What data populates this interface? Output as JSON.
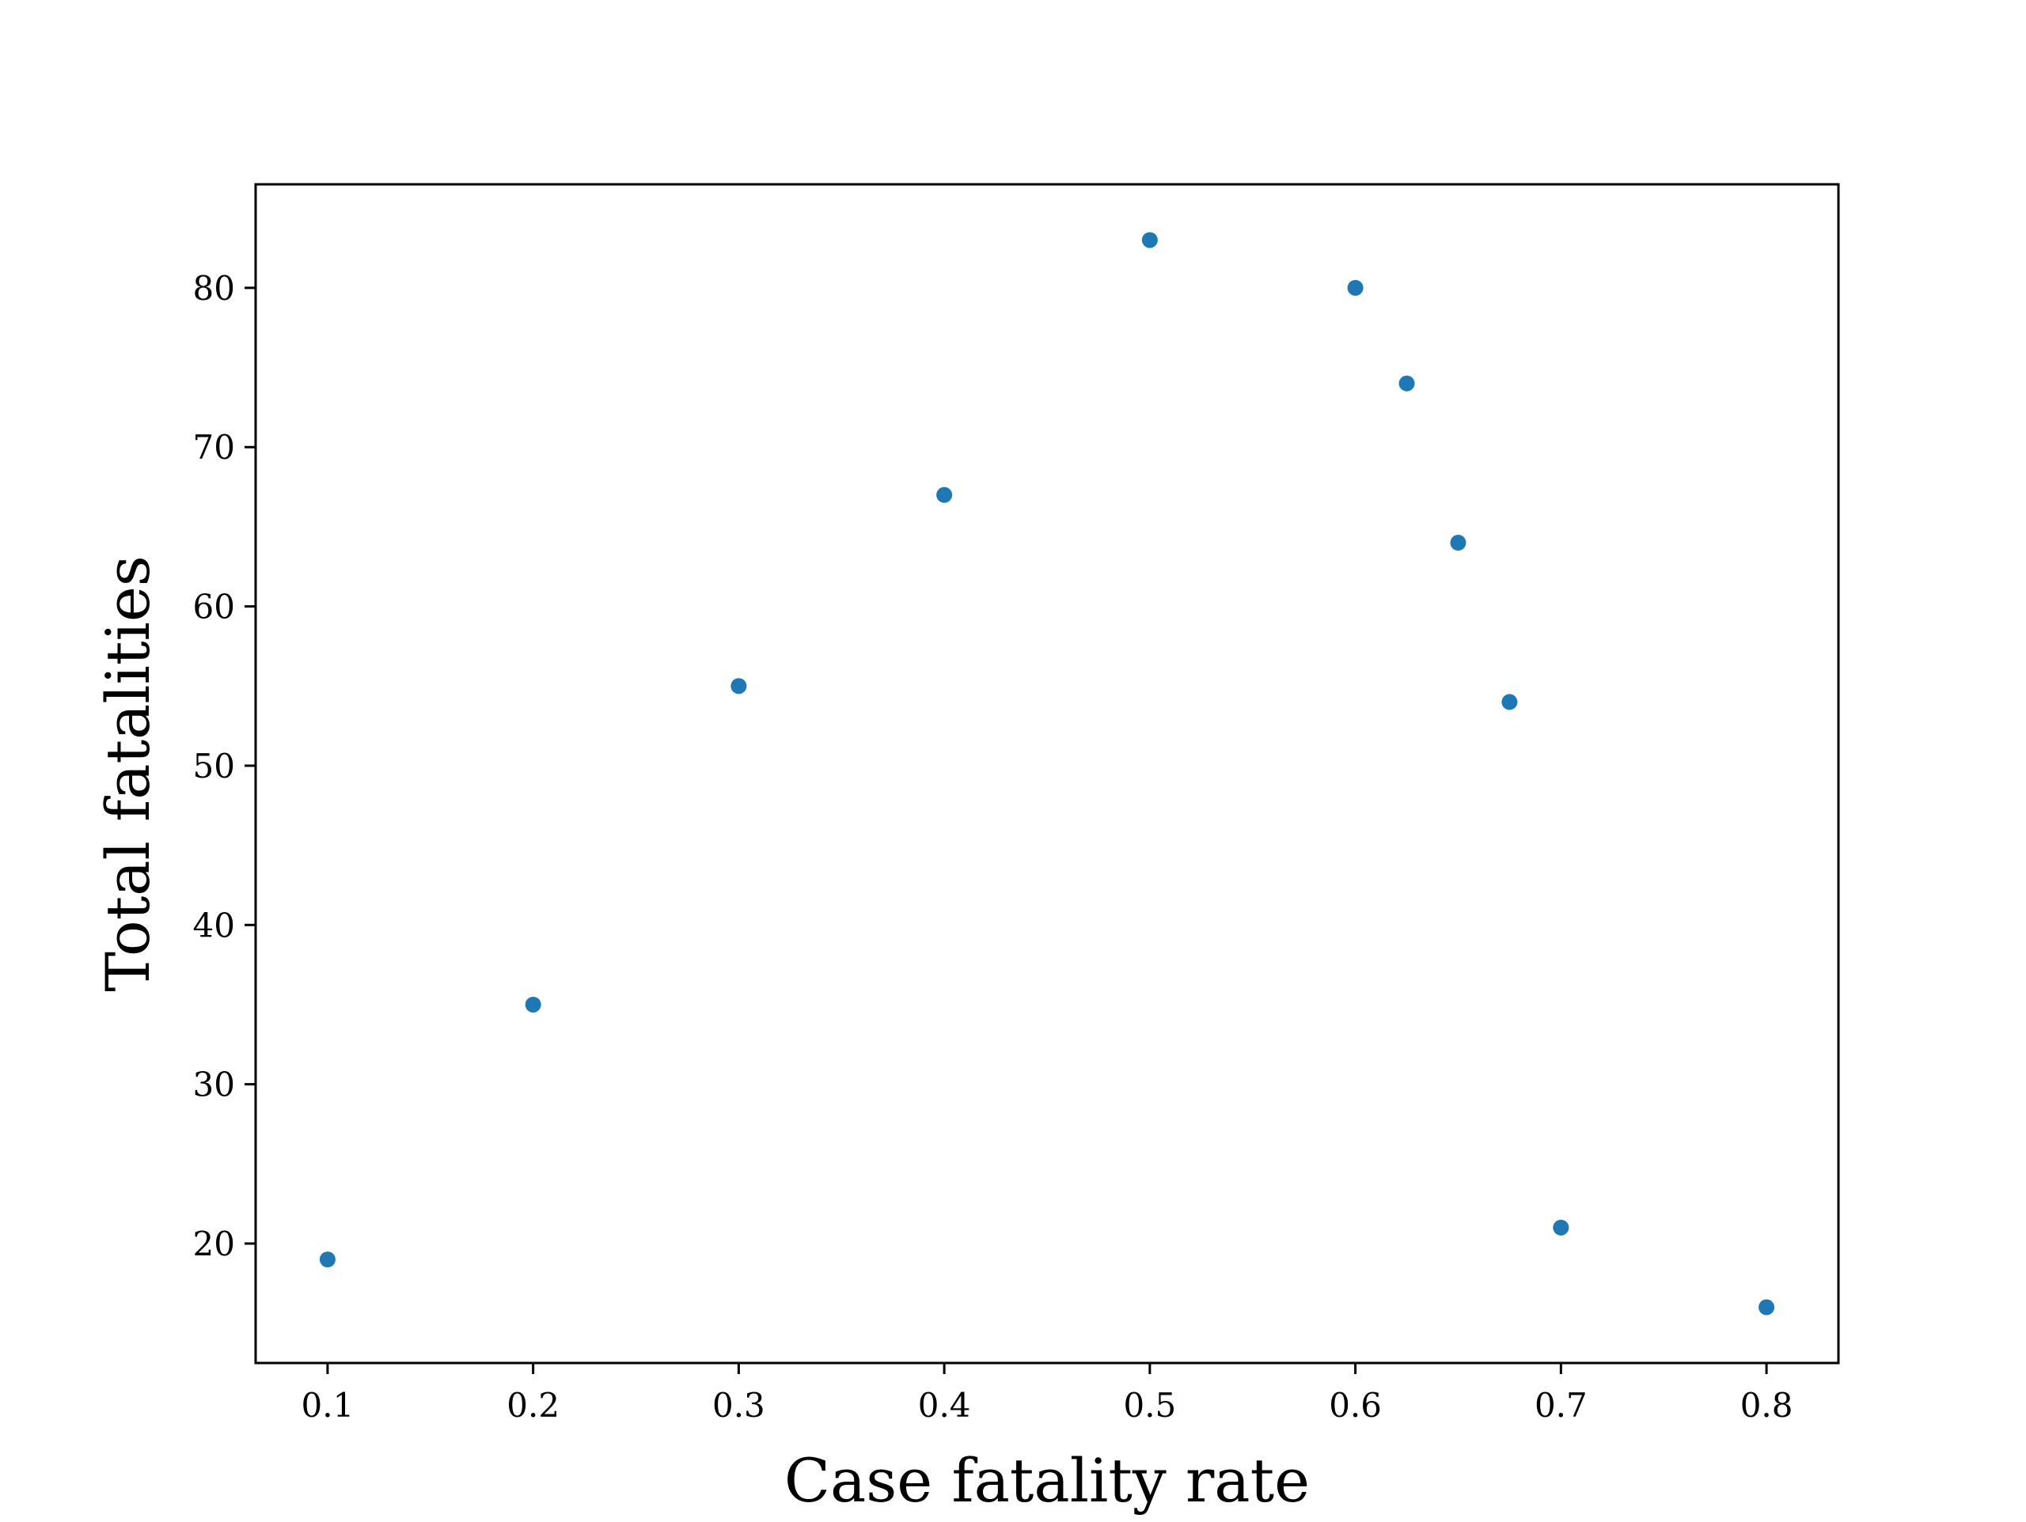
{
  "chart_data": {
    "type": "scatter",
    "title": "",
    "xlabel": "Case fatality rate",
    "ylabel": "Total fatalities",
    "xlim": [
      0.065,
      0.835
    ],
    "ylim": [
      12.5,
      86.5
    ],
    "xticks": [
      0.1,
      0.2,
      0.3,
      0.4,
      0.5,
      0.6,
      0.7,
      0.8
    ],
    "xtick_labels": [
      "0.1",
      "0.2",
      "0.3",
      "0.4",
      "0.5",
      "0.6",
      "0.7",
      "0.8"
    ],
    "yticks": [
      20,
      30,
      40,
      50,
      60,
      70,
      80
    ],
    "ytick_labels": [
      "20",
      "30",
      "40",
      "50",
      "60",
      "70",
      "80"
    ],
    "grid": false,
    "series": [
      {
        "color": "#1f77b4",
        "points": [
          {
            "x": 0.1,
            "y": 19
          },
          {
            "x": 0.2,
            "y": 35
          },
          {
            "x": 0.3,
            "y": 55
          },
          {
            "x": 0.4,
            "y": 67
          },
          {
            "x": 0.5,
            "y": 83
          },
          {
            "x": 0.6,
            "y": 80
          },
          {
            "x": 0.625,
            "y": 74
          },
          {
            "x": 0.65,
            "y": 64
          },
          {
            "x": 0.675,
            "y": 54
          },
          {
            "x": 0.7,
            "y": 21
          },
          {
            "x": 0.8,
            "y": 16
          }
        ]
      }
    ]
  }
}
